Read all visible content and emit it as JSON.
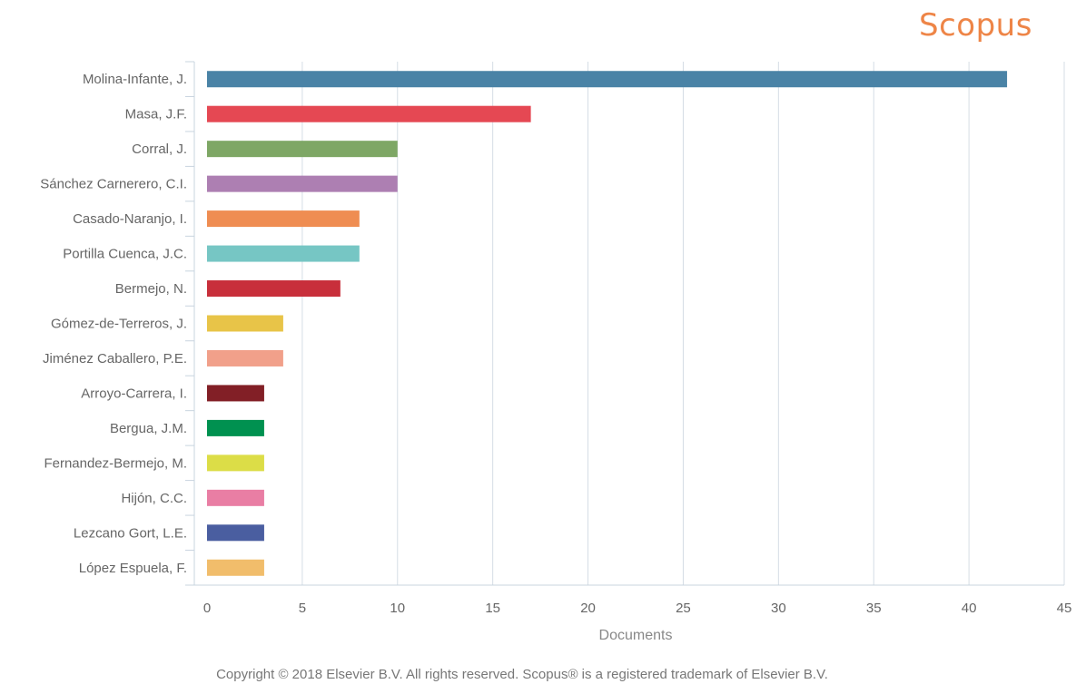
{
  "brand": {
    "logo_text": "Scopus",
    "logo_color": "#ee8547"
  },
  "footer": {
    "copyright": "Copyright © 2018 Elsevier B.V. All rights reserved. Scopus® is a registered trademark of Elsevier B.V."
  },
  "chart_data": {
    "type": "bar",
    "orientation": "horizontal",
    "title": "",
    "xlabel": "Documents",
    "ylabel": "",
    "xlim": [
      0,
      45
    ],
    "x_ticks": [
      0,
      5,
      10,
      15,
      20,
      25,
      30,
      35,
      40,
      45
    ],
    "grid": "vertical",
    "categories": [
      "Molina-Infante, J.",
      "Masa, J.F.",
      "Corral, J.",
      "Sánchez Carnerero, C.I.",
      "Casado-Naranjo, I.",
      "Portilla Cuenca, J.C.",
      "Bermejo, N.",
      "Gómez-de-Terreros, J.",
      "Jiménez Caballero, P.E.",
      "Arroyo-Carrera, I.",
      "Bergua, J.M.",
      "Fernandez-Bermejo, M.",
      "Hijón, C.C.",
      "Lezcano Gort, L.E.",
      "López Espuela, F."
    ],
    "values": [
      42,
      17,
      10,
      10,
      8,
      8,
      7,
      4,
      4,
      3,
      3,
      3,
      3,
      3,
      3
    ],
    "colors": [
      "#4a83a6",
      "#e54853",
      "#7ea765",
      "#ad7fb2",
      "#ef8d52",
      "#76c6c4",
      "#c82f3b",
      "#e8c448",
      "#f1a08a",
      "#821f26",
      "#009150",
      "#dcdd47",
      "#e97ea4",
      "#4a5ea0",
      "#f1bd6b"
    ]
  }
}
